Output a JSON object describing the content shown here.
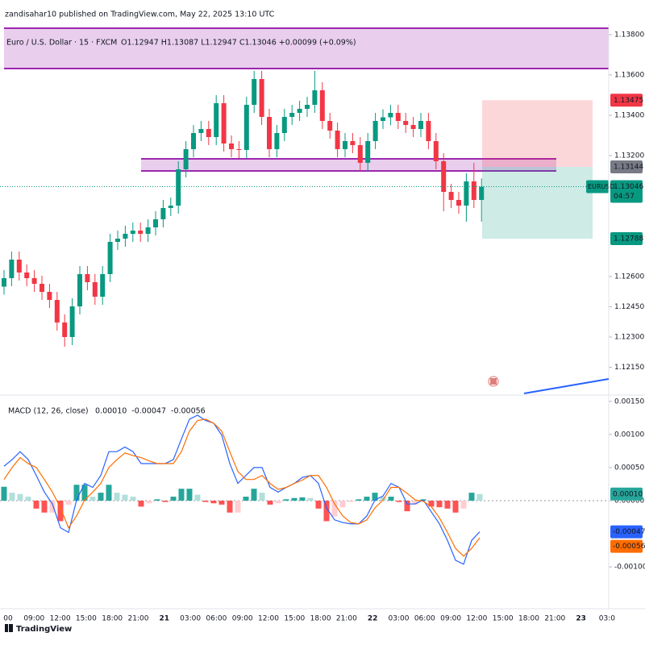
{
  "header": {
    "published": "zandisahar10 published on TradingView.com, May 22, 2025 13:10 UTC",
    "ohlc": "O1.12947  H1.13087  L1.12947  C1.13046  +0.00099 (+0.09%)",
    "logo": "TradingView"
  },
  "time_axis": {
    "labels": [
      "00",
      "09:00",
      "12:00",
      "15:00",
      "18:00",
      "21:00",
      "21",
      "03:00",
      "06:00",
      "09:00",
      "12:00",
      "15:00",
      "18:00",
      "21:00",
      "22",
      "03:00",
      "06:00",
      "09:00",
      "12:00",
      "15:00",
      "18:00",
      "21:00",
      "23",
      "03:0"
    ]
  },
  "chart_data": [
    {
      "type": "candlestick",
      "title": "Euro / U.S. Dollar · 15 · FXCM",
      "symbol": "EURUSD",
      "countdown": "04:57",
      "up_color": "#089981",
      "down_color": "#f23645",
      "open": [
        1.1255,
        1.12592,
        1.12684,
        1.1262,
        1.12592,
        1.12564,
        1.12524,
        1.12484,
        1.12372,
        1.123,
        1.12452,
        1.12612,
        1.12572,
        1.125,
        1.12612,
        1.12772,
        1.12788,
        1.12812,
        1.12828,
        1.12812,
        1.12844,
        1.12884,
        1.1294,
        1.12952,
        1.13132,
        1.13232,
        1.13312,
        1.13332,
        1.13292,
        1.1346,
        1.1326,
        1.13232,
        1.13228,
        1.13452,
        1.1358,
        1.13392,
        1.13232,
        1.13312,
        1.13392,
        1.13412,
        1.13432,
        1.13452,
        1.13524,
        1.13372,
        1.13324,
        1.13232,
        1.13272,
        1.13252,
        1.13164,
        1.13272,
        1.13372,
        1.1339,
        1.13412,
        1.13372,
        1.13352,
        1.13332,
        1.13372,
        1.13272,
        1.13172,
        1.1302,
        1.1298,
        1.12952,
        1.13072,
        1.1298
      ],
      "high": [
        1.12632,
        1.12724,
        1.12724,
        1.1266,
        1.12632,
        1.12604,
        1.12564,
        1.12524,
        1.12412,
        1.12492,
        1.12652,
        1.12652,
        1.12612,
        1.12652,
        1.12812,
        1.12828,
        1.12852,
        1.12868,
        1.12868,
        1.12884,
        1.12924,
        1.1298,
        1.12992,
        1.13172,
        1.13272,
        1.13352,
        1.13372,
        1.13372,
        1.135,
        1.135,
        1.133,
        1.13272,
        1.13492,
        1.1362,
        1.1362,
        1.13432,
        1.13352,
        1.13432,
        1.13452,
        1.13472,
        1.13492,
        1.1362,
        1.13564,
        1.13412,
        1.13364,
        1.13312,
        1.13312,
        1.13292,
        1.13312,
        1.13412,
        1.1343,
        1.13452,
        1.13452,
        1.13412,
        1.13392,
        1.13412,
        1.13412,
        1.13312,
        1.13212,
        1.1306,
        1.1302,
        1.13112,
        1.13164,
        1.13087
      ],
      "low": [
        1.1251,
        1.12552,
        1.1258,
        1.12552,
        1.12524,
        1.12484,
        1.12444,
        1.12332,
        1.12252,
        1.1226,
        1.12412,
        1.12532,
        1.1246,
        1.1246,
        1.12572,
        1.12732,
        1.12748,
        1.12772,
        1.12772,
        1.12772,
        1.12804,
        1.12844,
        1.129,
        1.12912,
        1.13092,
        1.13192,
        1.13272,
        1.13252,
        1.13252,
        1.1322,
        1.13192,
        1.13188,
        1.13188,
        1.13412,
        1.13352,
        1.13192,
        1.13192,
        1.13272,
        1.13352,
        1.13372,
        1.13392,
        1.13412,
        1.13332,
        1.13284,
        1.13192,
        1.13192,
        1.13212,
        1.13124,
        1.13124,
        1.13232,
        1.13332,
        1.1335,
        1.13332,
        1.13312,
        1.13292,
        1.13292,
        1.13232,
        1.13132,
        1.12924,
        1.1294,
        1.12912,
        1.12872,
        1.1294,
        1.12872
      ],
      "close": [
        1.12592,
        1.12684,
        1.1262,
        1.12592,
        1.12564,
        1.12524,
        1.12484,
        1.12372,
        1.123,
        1.12452,
        1.12612,
        1.12572,
        1.125,
        1.12612,
        1.12772,
        1.12788,
        1.12812,
        1.12828,
        1.12812,
        1.12844,
        1.12884,
        1.1294,
        1.12952,
        1.13132,
        1.13232,
        1.13312,
        1.13332,
        1.13292,
        1.1346,
        1.1326,
        1.13232,
        1.13228,
        1.13452,
        1.1358,
        1.13392,
        1.13232,
        1.13312,
        1.13392,
        1.13412,
        1.13432,
        1.13452,
        1.13524,
        1.13372,
        1.13324,
        1.13232,
        1.13272,
        1.13252,
        1.13164,
        1.13272,
        1.13372,
        1.1339,
        1.13412,
        1.13372,
        1.13352,
        1.13332,
        1.13372,
        1.13272,
        1.13172,
        1.1302,
        1.1298,
        1.12952,
        1.13072,
        1.1298,
        1.13046
      ],
      "ylim": [
        1.12012,
        1.13852
      ],
      "yticks": [
        {
          "value": 1.138,
          "label": "1.13800"
        },
        {
          "value": 1.136,
          "label": "1.13600"
        },
        {
          "value": 1.134,
          "label": "1.13400"
        },
        {
          "value": 1.132,
          "label": "1.13200"
        },
        {
          "value": 1.126,
          "label": "1.12600"
        },
        {
          "value": 1.1245,
          "label": "1.12450"
        },
        {
          "value": 1.123,
          "label": "1.12300"
        },
        {
          "value": 1.1215,
          "label": "1.12150"
        }
      ],
      "zones": [
        {
          "from": 1.13632,
          "to": 1.13832
        },
        {
          "from": 1.13124,
          "to": 1.13184
        }
      ],
      "zone_color": "#9c27b0",
      "zone_fill": "#e1bee7",
      "position": {
        "stop": 1.13475,
        "entry": 1.13144,
        "target": 1.12788
      },
      "grid": false
    },
    {
      "type": "macd",
      "title": "MACD (12, 26, close)",
      "ylim": [
        -0.00151,
        0.00157
      ],
      "yticks": [
        {
          "value": 0.0015,
          "label": "0.00150"
        },
        {
          "value": 0.001,
          "label": "0.00100"
        },
        {
          "value": 0.0005,
          "label": "0.00050"
        },
        {
          "value": 0,
          "label": "0.00000"
        },
        {
          "value": -0.001,
          "label": "-0.00100"
        }
      ],
      "histogram": [
        0.00021,
        0.00012,
        0.0001,
        6e-05,
        -0.00012,
        -0.00018,
        -0.00018,
        -0.00031,
        -6e-05,
        0.00024,
        0.00024,
        6e-05,
        0.00012,
        0.00024,
        0.00012,
        9e-05,
        6e-05,
        -9e-05,
        -4e-05,
        2e-05,
        -2e-05,
        6e-05,
        0.00018,
        0.00018,
        9e-05,
        -2e-05,
        -4e-05,
        -6e-05,
        -0.00018,
        -0.00018,
        6e-05,
        0.00018,
        0.00012,
        -6e-05,
        -4e-05,
        2e-05,
        4e-05,
        5e-05,
        4e-05,
        -0.00012,
        -0.00031,
        -0.00024,
        -0.0001,
        -2e-05,
        2e-05,
        6e-05,
        0.00012,
        6e-05,
        6e-05,
        -2e-05,
        -0.00016,
        -6e-05,
        2e-05,
        -9e-05,
        -0.0001,
        -0.00012,
        -0.00018,
        -0.00012,
        0.00012,
        0.0001
      ],
      "histogram_last_label": "0.00010",
      "histogram_colors": [
        "#26a69a",
        "#b2dfdb",
        "#ff5252",
        "#ffcdd2"
      ],
      "series": [
        {
          "color": "#2962ff",
          "last_label": "-0.00047",
          "values": [
            0.00052,
            0.00062,
            0.00074,
            0.00062,
            0.00038,
            0.00013,
            -5e-05,
            -0.00041,
            -0.00048,
            1e-05,
            0.00026,
            0.0002,
            0.00038,
            0.00074,
            0.00074,
            0.00081,
            0.00074,
            0.00056,
            0.00056,
            0.00056,
            0.00056,
            0.00062,
            0.00093,
            0.00123,
            0.00129,
            0.00121,
            0.00117,
            0.00099,
            0.00056,
            0.00026,
            0.00038,
            0.0005,
            0.0005,
            0.0002,
            0.00013,
            0.0002,
            0.00026,
            0.00035,
            0.00038,
            0.00026,
            -0.00011,
            -0.00029,
            -0.00033,
            -0.00035,
            -0.00035,
            -0.00023,
            1e-05,
            7e-05,
            0.00026,
            0.0002,
            -5e-05,
            -5e-05,
            1e-05,
            -0.00017,
            -0.00035,
            -0.0006,
            -0.0009,
            -0.00096,
            -0.0006,
            -0.00047
          ]
        },
        {
          "color": "#ff6d00",
          "last_label": "-0.00056",
          "values": [
            0.00032,
            0.0005,
            0.00065,
            0.00056,
            0.0005,
            0.00032,
            0.00013,
            -0.00011,
            -0.00041,
            -0.00023,
            1e-05,
            0.00013,
            0.00026,
            0.0005,
            0.00062,
            0.00072,
            0.00068,
            0.00065,
            0.0006,
            0.00056,
            0.00056,
            0.00056,
            0.00074,
            0.00105,
            0.00121,
            0.00123,
            0.00117,
            0.00105,
            0.00074,
            0.00044,
            0.00032,
            0.00032,
            0.00038,
            0.00026,
            0.00017,
            0.0002,
            0.00026,
            0.00031,
            0.00038,
            0.00038,
            0.0002,
            -5e-05,
            -0.00023,
            -0.00033,
            -0.00035,
            -0.00029,
            -0.00011,
            1e-05,
            0.0002,
            0.0002,
            0.00011,
            1e-05,
            -1e-05,
            -9e-05,
            -0.00026,
            -0.00048,
            -0.00072,
            -0.00084,
            -0.00072,
            -0.00056
          ]
        }
      ]
    }
  ]
}
